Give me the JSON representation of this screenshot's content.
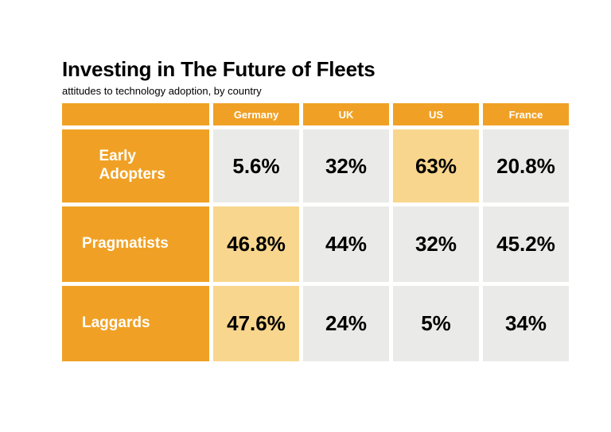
{
  "slide": {
    "title": "Investing in The Future of Fleets",
    "subtitle": "attitudes to technology adoption, by country"
  },
  "chart_data": {
    "type": "table",
    "title": "Investing in The Future of Fleets",
    "subtitle": "attitudes to technology adoption, by country",
    "columns": [
      "Germany",
      "UK",
      "US",
      "France"
    ],
    "rows": [
      {
        "label": "Early Adopters",
        "values": [
          "5.6%",
          "32%",
          "63%",
          "20.8%"
        ],
        "highlighted": [
          false,
          false,
          true,
          false
        ]
      },
      {
        "label": "Pragmatists",
        "values": [
          "46.8%",
          "44%",
          "32%",
          "45.2%"
        ],
        "highlighted": [
          true,
          false,
          false,
          false
        ]
      },
      {
        "label": "Laggards",
        "values": [
          "47.6%",
          "24%",
          "5%",
          "34%"
        ],
        "highlighted": [
          true,
          false,
          false,
          false
        ]
      }
    ],
    "layout_hints": {
      "header_fill": "#F0A125",
      "highlight_fill": "#F8D68D",
      "cell_fill": "#EAEAE8",
      "header_text_color": "#FFFFFF",
      "value_text_color": "#000000",
      "background": "#FFFFFF"
    }
  }
}
